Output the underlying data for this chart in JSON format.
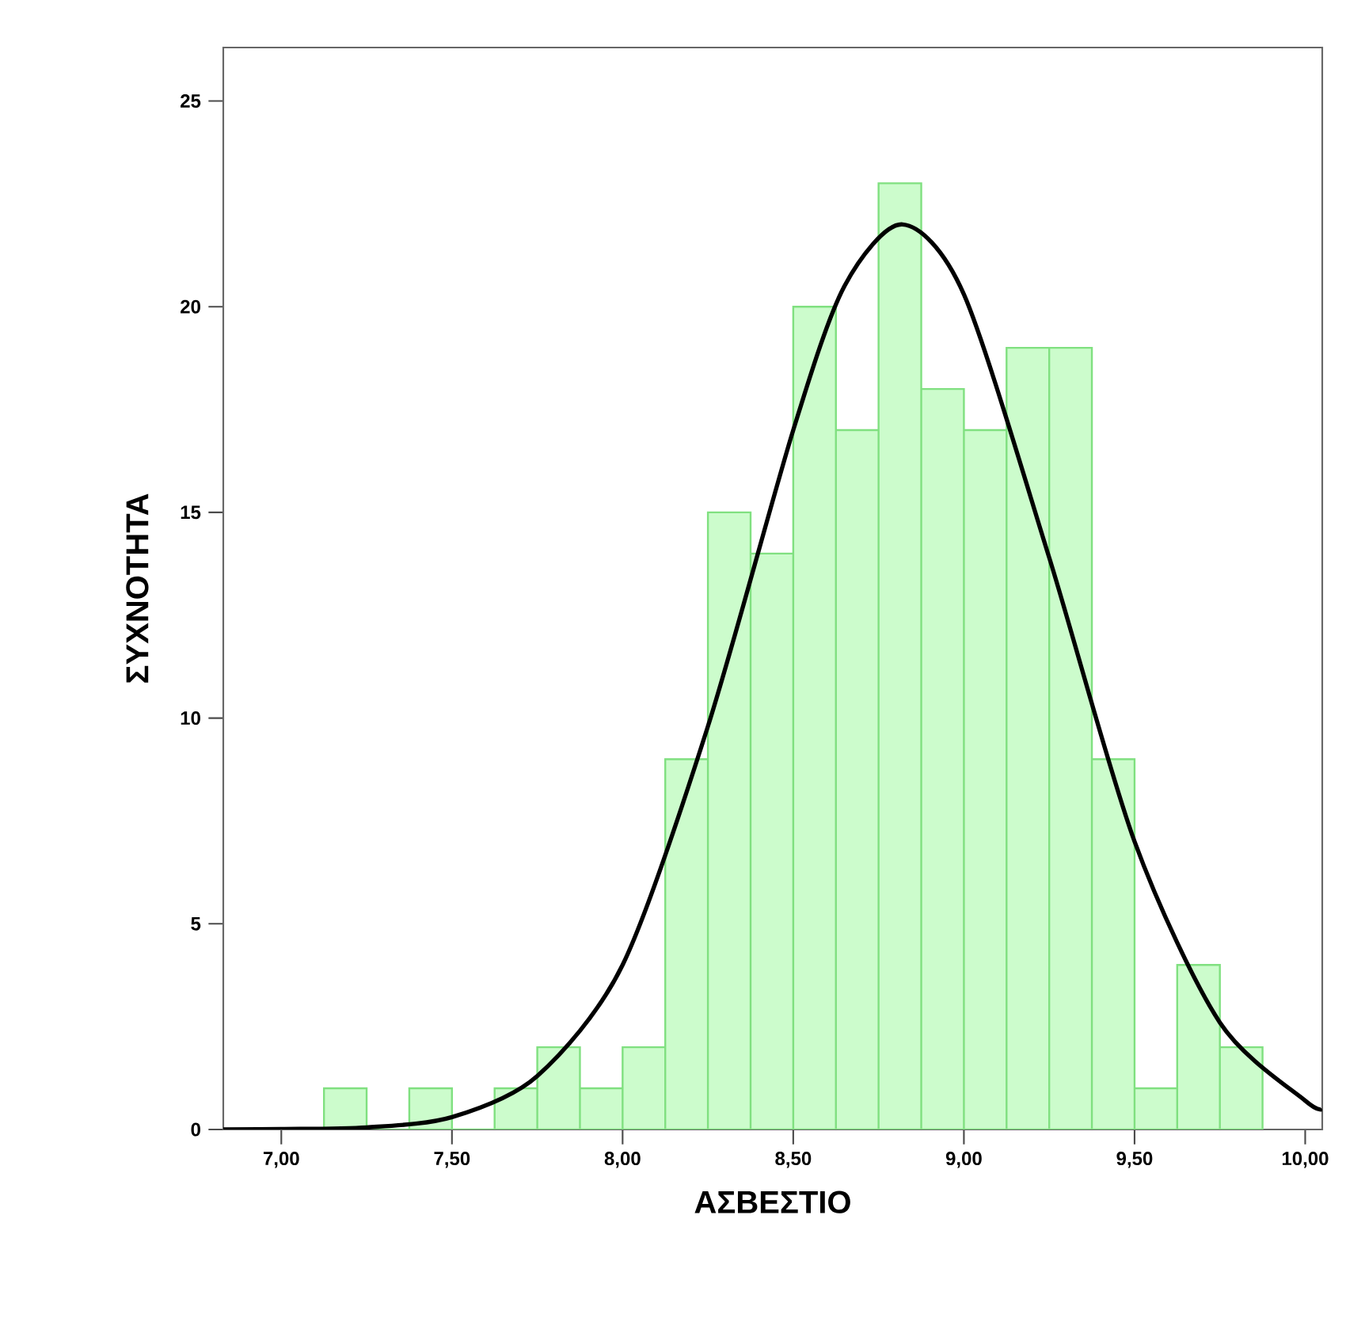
{
  "chart_data": {
    "type": "histogram",
    "xlabel": "ΑΣΒΕΣΤΙΟ",
    "ylabel": "ΣΥΧΝΟΤΗΤΑ",
    "bins": [
      7.125,
      7.25,
      7.375,
      7.5,
      7.625,
      7.75,
      7.875,
      8.0,
      8.125,
      8.25,
      8.375,
      8.5,
      8.625,
      8.75,
      8.875,
      9.0,
      9.125,
      9.25,
      9.375,
      9.5,
      9.625,
      9.75,
      9.875
    ],
    "values": [
      1,
      0,
      1,
      0,
      1,
      2,
      1,
      2,
      9,
      15,
      14,
      20,
      17,
      23,
      18,
      17,
      19,
      19,
      9,
      1,
      4,
      2
    ],
    "color": "#ccfccc",
    "series": [
      {
        "type": "line",
        "color": "#000000",
        "x": [
          6.83,
          7.0,
          7.25,
          7.5,
          7.75,
          8.0,
          8.25,
          8.5,
          8.65,
          8.82,
          9.0,
          9.25,
          9.5,
          9.75,
          10.0,
          10.05
        ],
        "values": [
          0,
          0.01,
          0.05,
          0.3,
          1.3,
          4.0,
          9.8,
          17,
          20.5,
          22,
          20.3,
          13.9,
          7.0,
          2.6,
          0.7,
          0.5
        ]
      }
    ],
    "xlim": [
      6.83,
      10.05
    ],
    "ylim": [
      0,
      26.3
    ],
    "xticks": [
      {
        "value": 7.0,
        "label": "7,00"
      },
      {
        "value": 7.5,
        "label": "7,50"
      },
      {
        "value": 8.0,
        "label": "8,00"
      },
      {
        "value": 8.5,
        "label": "8,50"
      },
      {
        "value": 9.0,
        "label": "9,00"
      },
      {
        "value": 9.5,
        "label": "9,50"
      },
      {
        "value": 10.0,
        "label": "10,00"
      }
    ],
    "yticks": [
      0,
      5,
      10,
      15,
      20,
      25
    ]
  }
}
